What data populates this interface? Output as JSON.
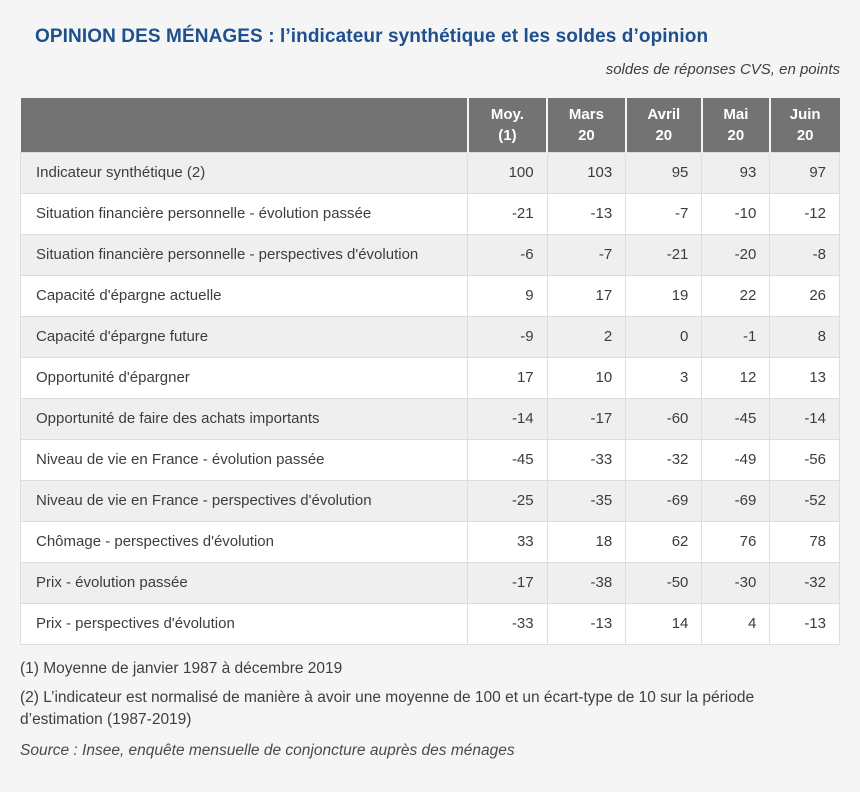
{
  "page": {
    "title": "OPINION DES MÉNAGES : l’indicateur synthétique et les soldes d’opinion",
    "subtitle": "soldes de réponses CVS, en points"
  },
  "table": {
    "columns": [
      {
        "line1": "Moy.",
        "line2": "(1)"
      },
      {
        "line1": "Mars",
        "line2": "20"
      },
      {
        "line1": "Avril",
        "line2": "20"
      },
      {
        "line1": "Mai",
        "line2": "20"
      },
      {
        "line1": "Juin",
        "line2": "20"
      }
    ],
    "rows": [
      {
        "label": "Indicateur synthétique (2)",
        "values": [
          100,
          103,
          95,
          93,
          97
        ]
      },
      {
        "label": "Situation financière personnelle - évolution passée",
        "values": [
          -21,
          -13,
          -7,
          -10,
          -12
        ]
      },
      {
        "label": "Situation financière personnelle - perspectives d'évolution",
        "values": [
          -6,
          -7,
          -21,
          -20,
          -8
        ]
      },
      {
        "label": "Capacité d'épargne actuelle",
        "values": [
          9,
          17,
          19,
          22,
          26
        ]
      },
      {
        "label": "Capacité d'épargne future",
        "values": [
          -9,
          2,
          0,
          -1,
          8
        ]
      },
      {
        "label": "Opportunité d'épargner",
        "values": [
          17,
          10,
          3,
          12,
          13
        ]
      },
      {
        "label": "Opportunité de faire des achats importants",
        "values": [
          -14,
          -17,
          -60,
          -45,
          -14
        ]
      },
      {
        "label": "Niveau de vie en France - évolution passée",
        "values": [
          -45,
          -33,
          -32,
          -49,
          -56
        ]
      },
      {
        "label": "Niveau de vie en France - perspectives d'évolution",
        "values": [
          -25,
          -35,
          -69,
          -69,
          -52
        ]
      },
      {
        "label": "Chômage - perspectives d'évolution",
        "values": [
          33,
          18,
          62,
          76,
          78
        ]
      },
      {
        "label": "Prix - évolution passée",
        "values": [
          -17,
          -38,
          -50,
          -30,
          -32
        ]
      },
      {
        "label": "Prix - perspectives d'évolution",
        "values": [
          -33,
          -13,
          14,
          4,
          -13
        ]
      }
    ]
  },
  "footnotes": [
    "(1) Moyenne de janvier 1987 à décembre 2019",
    "(2) L’indicateur est normalisé de manière à avoir une moyenne de 100 et un écart-type de 10 sur la période d’estimation (1987-2019)"
  ],
  "source": "Source : Insee, enquête mensuelle de conjoncture auprès des ménages",
  "colors": {
    "title_blue": "#1e4f8f",
    "header_bg": "#737373",
    "header_text": "#ffffff",
    "stripe_bg": "#efefef",
    "row_bg": "#ffffff",
    "border": "#dddddd",
    "body_text": "#3d3d3f",
    "page_bg": "#f5f5f6"
  }
}
